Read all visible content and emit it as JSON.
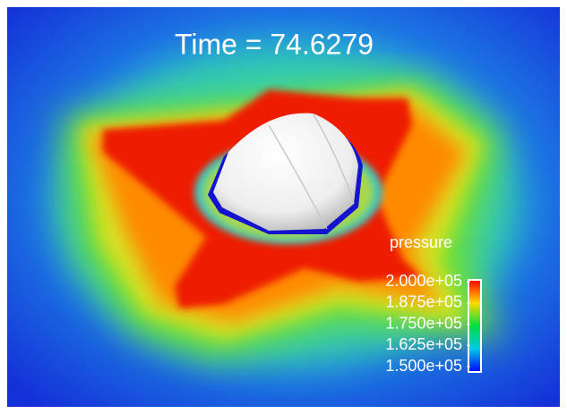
{
  "title": "Time = 74.6279",
  "colorbar": {
    "title": "pressure",
    "range": [
      150000,
      200000
    ],
    "ticks": [
      {
        "value": 200000,
        "label": "2.000e+05"
      },
      {
        "value": 187500,
        "label": "1.875e+05"
      },
      {
        "value": 175000,
        "label": "1.750e+05"
      },
      {
        "value": 162500,
        "label": "1.625e+05"
      },
      {
        "value": 150000,
        "label": "1.500e+05"
      }
    ]
  }
}
